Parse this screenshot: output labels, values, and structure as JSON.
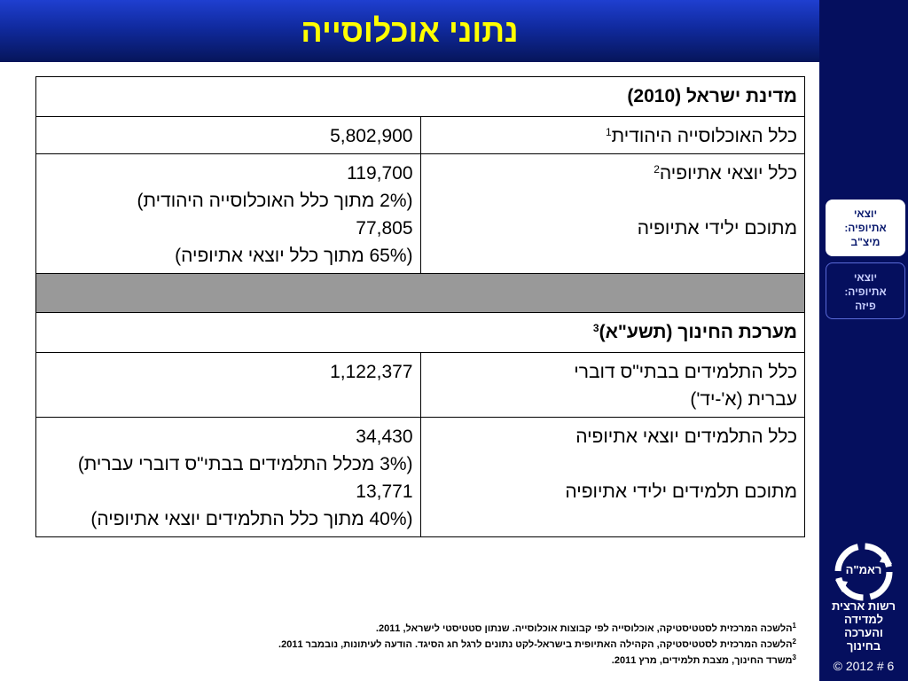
{
  "title": "נתוני אוכלוסייה",
  "sidebar": {
    "nav": [
      {
        "lines": [
          "יוצאי",
          "אתיופיה:",
          "מיצ\"ב"
        ],
        "active": true
      },
      {
        "lines": [
          "יוצאי",
          "אתיופיה:",
          "פיזה"
        ],
        "active": false
      }
    ],
    "logo_text": "ראמ\"ה",
    "org_name": [
      "רשות ארצית",
      "למדידה",
      "והערכה",
      "בחינוך"
    ],
    "slide_label": "© 2012 # 6"
  },
  "table": {
    "section1_header": "מדינת ישראל (2010)",
    "row1": {
      "label": "כלל האוכלוסייה היהודית",
      "sup": "1",
      "value": "5,802,900"
    },
    "row2": {
      "label_a": "כלל יוצאי אתיופיה",
      "sup": "2",
      "label_b": "מתוכם ילידי אתיופיה",
      "values": [
        "119,700",
        "(2% מתוך כלל האוכלוסייה היהודית)",
        "77,805",
        "(65% מתוך כלל יוצאי אתיופיה)"
      ]
    },
    "section2_header": "מערכת החינוך (תשע\"א)",
    "section2_sup": "3",
    "row3": {
      "label_lines": [
        "כלל התלמידים בבתי\"ס דוברי",
        "עברית (א'-יד')"
      ],
      "value": "1,122,377"
    },
    "row4": {
      "label_a": "כלל התלמידים יוצאי אתיופיה",
      "label_b": "מתוכם תלמידים ילידי אתיופיה",
      "values": [
        "34,430",
        "(3% מכלל התלמידים בבתי\"ס דוברי עברית)",
        "13,771",
        "(40% מתוך כלל התלמידים יוצאי אתיופיה)"
      ]
    }
  },
  "footnotes": [
    {
      "num": "1",
      "text": "הלשכה המרכזית לסטטיסטיקה, אוכלוסייה לפי קבוצות אוכלוסייה. שנתון סטטיסטי לישראל, 2011."
    },
    {
      "num": "2",
      "text": "הלשכה המרכזית לסטטיסטיקה, הקהילה האתיופית בישראל-לקט נתונים לרגל חג הסיגד. הודעה לעיתונות, נובמבר 2011."
    },
    {
      "num": "3",
      "text": "משרד החינוך, מצבת תלמידים, מרץ 2011."
    }
  ],
  "colors": {
    "title_text": "#ffff00",
    "title_bar": "#102a9e",
    "sidebar_bg": "#050f5e",
    "grey_separator": "#999999"
  }
}
